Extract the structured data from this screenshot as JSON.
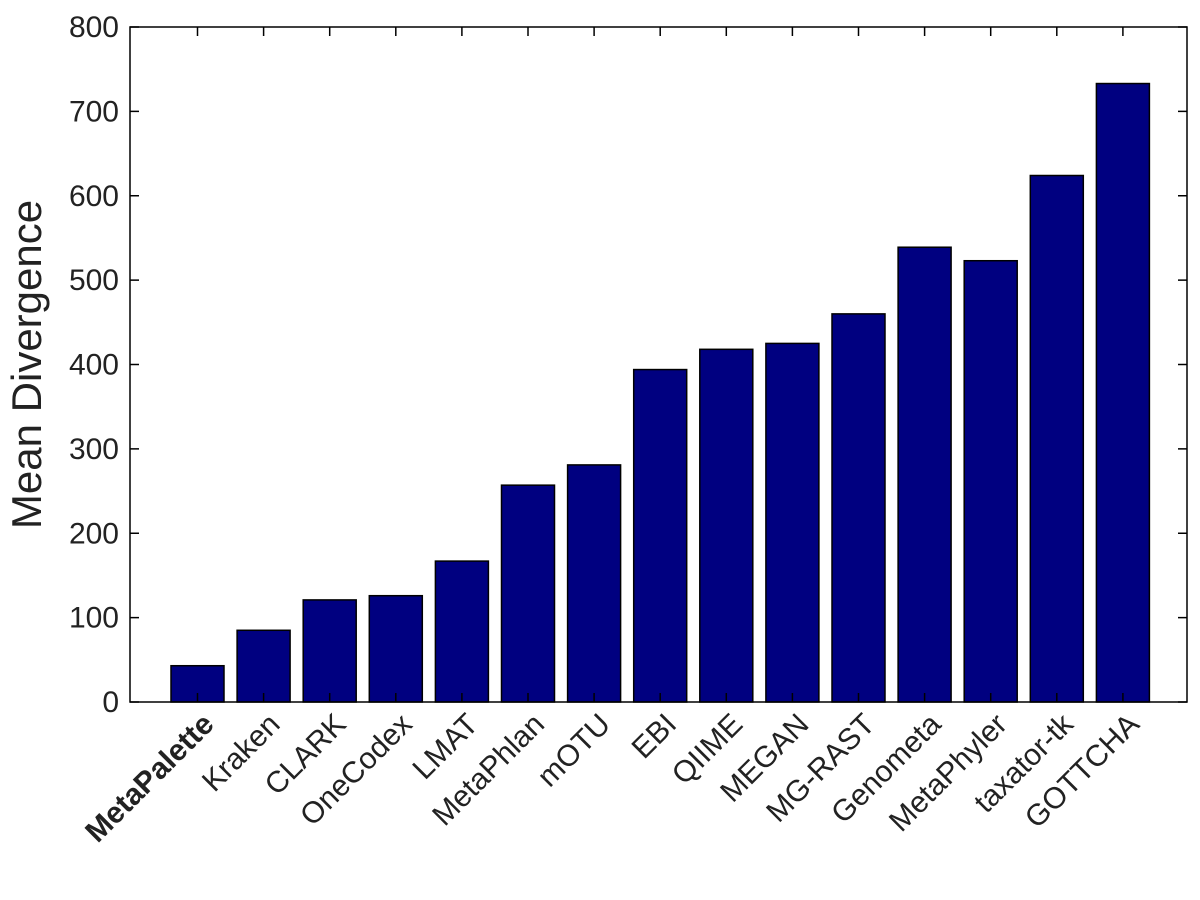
{
  "chart_data": {
    "type": "bar",
    "title": "",
    "xlabel": "",
    "ylabel": "Mean Divergence",
    "ylim": [
      0,
      800
    ],
    "yticks": [
      0,
      100,
      200,
      300,
      400,
      500,
      600,
      700,
      800
    ],
    "grid": false,
    "bar_color": "#000080",
    "highlight_category": "MetaPalette",
    "categories": [
      "MetaPalette",
      "Kraken",
      "CLARK",
      "OneCodex",
      "LMAT",
      "MetaPhlan",
      "mOTU",
      "EBI",
      "QIIME",
      "MEGAN",
      "MG-RAST",
      "Genometa",
      "MetaPhyler",
      "taxator-tk",
      "GOTTCHA"
    ],
    "values": [
      43,
      85,
      121,
      126,
      167,
      257,
      281,
      394,
      418,
      425,
      460,
      539,
      523,
      624,
      733
    ]
  }
}
